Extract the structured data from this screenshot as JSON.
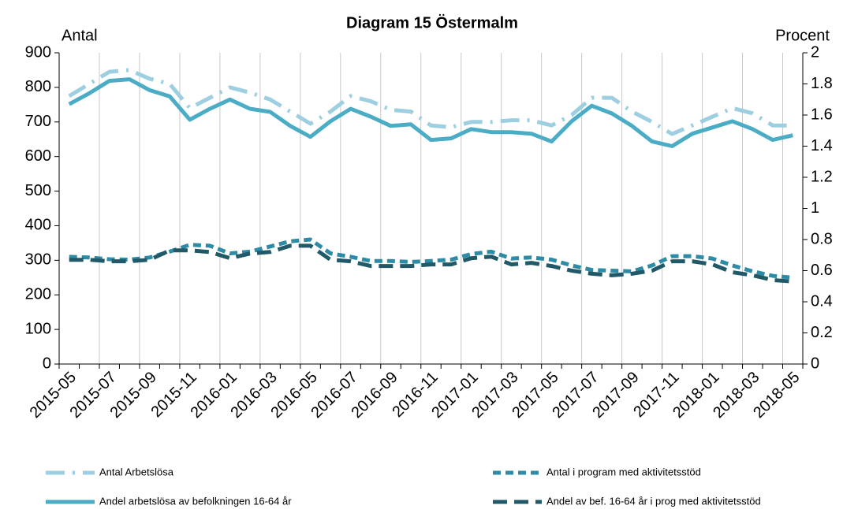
{
  "chart_data": {
    "type": "line",
    "title": "Diagram 15 Östermalm",
    "y_label": "Antal",
    "y2_label": "Procent",
    "categories": [
      "2015-05",
      null,
      "2015-07",
      null,
      "2015-09",
      null,
      "2015-11",
      null,
      "2016-01",
      null,
      "2016-03",
      null,
      "2016-05",
      null,
      "2016-07",
      null,
      "2016-09",
      null,
      "2016-11",
      null,
      "2017-01",
      null,
      "2017-03",
      null,
      "2017-05",
      null,
      "2017-07",
      null,
      "2017-09",
      null,
      "2017-11",
      null,
      "2018-01",
      null,
      "2018-03",
      null,
      "2018-05"
    ],
    "ylim": [
      0,
      900
    ],
    "yticks": [
      0,
      100,
      200,
      300,
      400,
      500,
      600,
      700,
      800,
      900
    ],
    "y2lim": [
      0,
      2
    ],
    "y2ticks": [
      0,
      0.2,
      0.4,
      0.6,
      0.8,
      1,
      1.2,
      1.4,
      1.6,
      1.8,
      2
    ],
    "grid": true,
    "series": [
      {
        "name": "Antal Arbetslösa",
        "color": "#9dcfe0",
        "style": "dashdot",
        "values": [
          775,
          810,
          845,
          850,
          825,
          810,
          740,
          770,
          800,
          785,
          765,
          730,
          695,
          730,
          775,
          760,
          735,
          730,
          690,
          685,
          700,
          700,
          705,
          705,
          690,
          720,
          770,
          770,
          730,
          700,
          665,
          690,
          715,
          740,
          725,
          690,
          690
        ]
      },
      {
        "name": "Antal i program med aktivitetsstöd",
        "color": "#2e8ba5",
        "style": "dash",
        "values": [
          310,
          308,
          303,
          302,
          308,
          325,
          345,
          342,
          320,
          325,
          340,
          355,
          360,
          320,
          310,
          298,
          298,
          295,
          298,
          302,
          318,
          325,
          305,
          308,
          302,
          285,
          272,
          270,
          268,
          285,
          312,
          312,
          305,
          285,
          268,
          255,
          250
        ]
      },
      {
        "name": "Andel arbetslösa av befolkningen 16-64 år",
        "color": "#4bacc6",
        "style": "solid",
        "axis": "y2",
        "values": [
          1.67,
          1.74,
          1.82,
          1.83,
          1.76,
          1.72,
          1.57,
          1.64,
          1.7,
          1.64,
          1.62,
          1.53,
          1.46,
          1.56,
          1.64,
          1.59,
          1.53,
          1.54,
          1.44,
          1.45,
          1.51,
          1.49,
          1.49,
          1.48,
          1.43,
          1.56,
          1.66,
          1.61,
          1.53,
          1.43,
          1.4,
          1.48,
          1.52,
          1.56,
          1.51,
          1.44,
          1.47
        ]
      },
      {
        "name": "Andel av bef. 16-64 år i prog med aktivitetsstöd",
        "color": "#215968",
        "style": "longdash",
        "axis": "y2",
        "values": [
          0.67,
          0.67,
          0.66,
          0.66,
          0.67,
          0.73,
          0.73,
          0.72,
          0.68,
          0.71,
          0.72,
          0.76,
          0.76,
          0.67,
          0.66,
          0.63,
          0.63,
          0.63,
          0.64,
          0.64,
          0.68,
          0.69,
          0.64,
          0.65,
          0.63,
          0.6,
          0.58,
          0.57,
          0.58,
          0.6,
          0.66,
          0.66,
          0.64,
          0.59,
          0.57,
          0.54,
          0.53
        ]
      }
    ]
  }
}
